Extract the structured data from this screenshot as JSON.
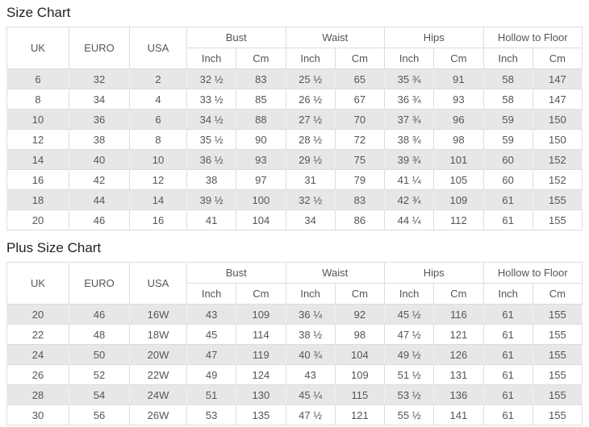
{
  "colors": {
    "background": "#ffffff",
    "stripe_row": "#e7e7e7",
    "border": "#dddddd",
    "cell_text": "#555555",
    "title_text": "#222222"
  },
  "tables": [
    {
      "title": "Size Chart",
      "columns": [
        {
          "label": "UK"
        },
        {
          "label": "EURO"
        },
        {
          "label": "USA"
        },
        {
          "label": "Bust",
          "children": [
            "Inch",
            "Cm"
          ]
        },
        {
          "label": "Waist",
          "children": [
            "Inch",
            "Cm"
          ]
        },
        {
          "label": "Hips",
          "children": [
            "Inch",
            "Cm"
          ]
        },
        {
          "label": "Hollow to Floor",
          "children": [
            "Inch",
            "Cm"
          ]
        }
      ],
      "rows": [
        [
          "6",
          "32",
          "2",
          "32 ½",
          "83",
          "25 ½",
          "65",
          "35 ¾",
          "91",
          "58",
          "147"
        ],
        [
          "8",
          "34",
          "4",
          "33 ½",
          "85",
          "26 ½",
          "67",
          "36 ¾",
          "93",
          "58",
          "147"
        ],
        [
          "10",
          "36",
          "6",
          "34 ½",
          "88",
          "27 ½",
          "70",
          "37 ¾",
          "96",
          "59",
          "150"
        ],
        [
          "12",
          "38",
          "8",
          "35 ½",
          "90",
          "28 ½",
          "72",
          "38 ¾",
          "98",
          "59",
          "150"
        ],
        [
          "14",
          "40",
          "10",
          "36 ½",
          "93",
          "29 ½",
          "75",
          "39 ¾",
          "101",
          "60",
          "152"
        ],
        [
          "16",
          "42",
          "12",
          "38",
          "97",
          "31",
          "79",
          "41 ¼",
          "105",
          "60",
          "152"
        ],
        [
          "18",
          "44",
          "14",
          "39 ½",
          "100",
          "32 ½",
          "83",
          "42 ¾",
          "109",
          "61",
          "155"
        ],
        [
          "20",
          "46",
          "16",
          "41",
          "104",
          "34",
          "86",
          "44 ¼",
          "112",
          "61",
          "155"
        ]
      ]
    },
    {
      "title": "Plus Size Chart",
      "columns": [
        {
          "label": "UK"
        },
        {
          "label": "EURO"
        },
        {
          "label": "USA"
        },
        {
          "label": "Bust",
          "children": [
            "Inch",
            "Cm"
          ]
        },
        {
          "label": "Waist",
          "children": [
            "Inch",
            "Cm"
          ]
        },
        {
          "label": "Hips",
          "children": [
            "Inch",
            "Cm"
          ]
        },
        {
          "label": "Hollow to Floor",
          "children": [
            "Inch",
            "Cm"
          ]
        }
      ],
      "rows": [
        [
          "20",
          "46",
          "16W",
          "43",
          "109",
          "36 ¼",
          "92",
          "45 ½",
          "116",
          "61",
          "155"
        ],
        [
          "22",
          "48",
          "18W",
          "45",
          "114",
          "38 ½",
          "98",
          "47 ½",
          "121",
          "61",
          "155"
        ],
        [
          "24",
          "50",
          "20W",
          "47",
          "119",
          "40 ¾",
          "104",
          "49 ½",
          "126",
          "61",
          "155"
        ],
        [
          "26",
          "52",
          "22W",
          "49",
          "124",
          "43",
          "109",
          "51 ½",
          "131",
          "61",
          "155"
        ],
        [
          "28",
          "54",
          "24W",
          "51",
          "130",
          "45 ¼",
          "115",
          "53 ½",
          "136",
          "61",
          "155"
        ],
        [
          "30",
          "56",
          "26W",
          "53",
          "135",
          "47 ½",
          "121",
          "55 ½",
          "141",
          "61",
          "155"
        ]
      ]
    }
  ]
}
